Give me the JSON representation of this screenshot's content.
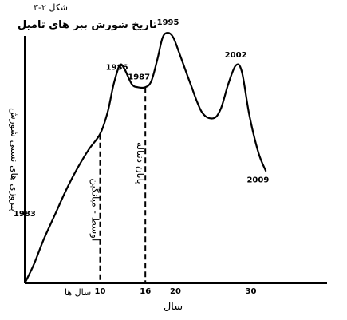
{
  "figure_label": "شکل ۲-۳",
  "chart_data": {
    "type": "line",
    "title": "تاریخ شورش ببر های تامیل",
    "xlabel": "سال",
    "ylabel": "پیروزی های نسبی شورش",
    "x_origin_label": "سال ها",
    "x_ticks": [
      "10",
      "16",
      "20",
      "30"
    ],
    "series": [
      {
        "values": [
          [
            0,
            0
          ],
          [
            1.2,
            6
          ],
          [
            2.5,
            14
          ],
          [
            4,
            22
          ],
          [
            5.5,
            30
          ],
          [
            7,
            37
          ],
          [
            8.5,
            43
          ],
          [
            10,
            48
          ],
          [
            11,
            55
          ],
          [
            11.8,
            64
          ],
          [
            12.6,
            70
          ],
          [
            13.2,
            69
          ],
          [
            14.2,
            64
          ],
          [
            15,
            63
          ],
          [
            16,
            63
          ],
          [
            16.8,
            65
          ],
          [
            17.6,
            72
          ],
          [
            18.3,
            79
          ],
          [
            19,
            80.5
          ],
          [
            19.7,
            79
          ],
          [
            20.5,
            74
          ],
          [
            22,
            64
          ],
          [
            23.5,
            55
          ],
          [
            25,
            53
          ],
          [
            26,
            56
          ],
          [
            27,
            64
          ],
          [
            28,
            70
          ],
          [
            28.8,
            68
          ],
          [
            29.8,
            54
          ],
          [
            31,
            42
          ],
          [
            32,
            36
          ]
        ]
      }
    ],
    "point_labels": [
      {
        "x": 4,
        "y": 22,
        "text": "1983"
      },
      {
        "x": 11.8,
        "y": 64,
        "text": "1986"
      },
      {
        "x": 16,
        "y": 63,
        "text": "1987"
      },
      {
        "x": 19,
        "y": 80.5,
        "text": "1995"
      },
      {
        "x": 28,
        "y": 70,
        "text": "2002"
      },
      {
        "x": 32,
        "y": 36,
        "text": "2009"
      }
    ],
    "vertical_markers": [
      {
        "x": 10,
        "text": "اوسط - میانگین"
      },
      {
        "x": 16,
        "text": "پایان دنباله"
      }
    ],
    "grid": false,
    "legend": "none"
  }
}
